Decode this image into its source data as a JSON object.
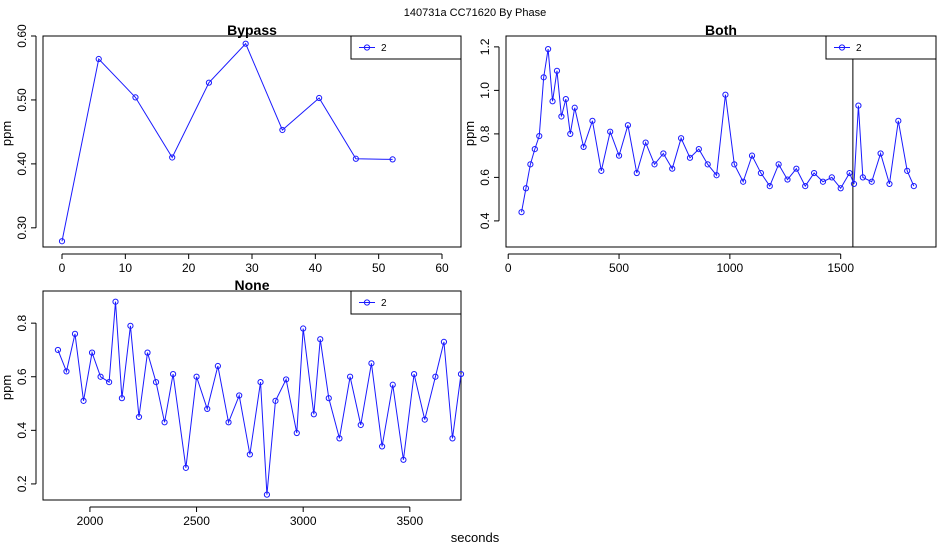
{
  "figure": {
    "supertitle": "140731a    CC71620   By Phase",
    "xlabel": "seconds"
  },
  "colors": {
    "series": "#1a1aff",
    "axis": "#000000",
    "frame": "#000000"
  },
  "chart_data": [
    {
      "type": "line",
      "title": "Bypass",
      "ylabel": "ppm",
      "xlabel": "",
      "xlim": [
        -3,
        63
      ],
      "ylim": [
        0.27,
        0.6
      ],
      "xticks": [
        0,
        10,
        20,
        30,
        40,
        50,
        60
      ],
      "yticks": [
        0.3,
        0.4,
        0.5,
        0.6
      ],
      "ytick_labels": [
        "0.30",
        "0.40",
        "0.50",
        "0.60"
      ],
      "legend": {
        "position": "top-right",
        "entries": [
          "2"
        ]
      },
      "series": [
        {
          "name": "2",
          "x": [
            0,
            5.8,
            11.6,
            17.4,
            23.2,
            29.0,
            34.8,
            40.6,
            46.4,
            52.2
          ],
          "y": [
            0.279,
            0.564,
            0.504,
            0.41,
            0.527,
            0.588,
            0.453,
            0.503,
            0.408,
            0.407
          ]
        }
      ]
    },
    {
      "type": "line",
      "title": "Both",
      "ylabel": "ppm",
      "xlabel": "",
      "xlim": [
        -10,
        1930
      ],
      "ylim": [
        0.28,
        1.25
      ],
      "xticks": [
        0,
        500,
        1000,
        1500
      ],
      "yticks": [
        0.4,
        0.6,
        0.8,
        1.0,
        1.2
      ],
      "ytick_labels": [
        "0.4",
        "0.6",
        "0.8",
        "1.0",
        "1.2"
      ],
      "vline_x": 1555,
      "legend": {
        "position": "top-right",
        "entries": [
          "2"
        ]
      },
      "series": [
        {
          "name": "2",
          "x": [
            60,
            80,
            100,
            120,
            140,
            160,
            180,
            200,
            220,
            240,
            260,
            280,
            300,
            340,
            380,
            420,
            460,
            500,
            540,
            580,
            620,
            660,
            700,
            740,
            780,
            820,
            860,
            900,
            940,
            980,
            1020,
            1060,
            1100,
            1140,
            1180,
            1220,
            1260,
            1300,
            1340,
            1380,
            1420,
            1460,
            1500,
            1540,
            1560,
            1580,
            1600,
            1640,
            1680,
            1720,
            1760,
            1800,
            1830
          ],
          "y": [
            0.44,
            0.55,
            0.66,
            0.73,
            0.79,
            1.06,
            1.19,
            0.95,
            1.09,
            0.88,
            0.96,
            0.8,
            0.92,
            0.74,
            0.86,
            0.63,
            0.81,
            0.7,
            0.84,
            0.62,
            0.76,
            0.66,
            0.71,
            0.64,
            0.78,
            0.69,
            0.73,
            0.66,
            0.61,
            0.98,
            0.66,
            0.58,
            0.7,
            0.62,
            0.56,
            0.66,
            0.59,
            0.64,
            0.56,
            0.62,
            0.58,
            0.6,
            0.55,
            0.62,
            0.57,
            0.93,
            0.6,
            0.58,
            0.71,
            0.57,
            0.86,
            0.63,
            0.56
          ]
        }
      ]
    },
    {
      "type": "line",
      "title": "None",
      "ylabel": "ppm",
      "xlabel": "",
      "xlim": [
        1780,
        3740
      ],
      "ylim": [
        0.14,
        0.92
      ],
      "xticks": [
        2000,
        2500,
        3000,
        3500
      ],
      "yticks": [
        0.2,
        0.4,
        0.6,
        0.8
      ],
      "ytick_labels": [
        "0.2",
        "0.4",
        "0.6",
        "0.8"
      ],
      "legend": {
        "position": "top-right",
        "entries": [
          "2"
        ]
      },
      "series": [
        {
          "name": "2",
          "x": [
            1850,
            1890,
            1930,
            1970,
            2010,
            2050,
            2090,
            2120,
            2150,
            2190,
            2230,
            2270,
            2310,
            2350,
            2390,
            2450,
            2500,
            2550,
            2600,
            2650,
            2700,
            2750,
            2800,
            2830,
            2870,
            2920,
            2970,
            3000,
            3050,
            3080,
            3120,
            3170,
            3220,
            3270,
            3320,
            3370,
            3420,
            3470,
            3520,
            3570,
            3620,
            3660,
            3700,
            3740
          ],
          "y": [
            0.7,
            0.62,
            0.76,
            0.51,
            0.69,
            0.6,
            0.58,
            0.88,
            0.52,
            0.79,
            0.45,
            0.69,
            0.58,
            0.43,
            0.61,
            0.26,
            0.6,
            0.48,
            0.64,
            0.43,
            0.53,
            0.31,
            0.58,
            0.16,
            0.51,
            0.59,
            0.39,
            0.78,
            0.46,
            0.74,
            0.52,
            0.37,
            0.6,
            0.42,
            0.65,
            0.34,
            0.57,
            0.29,
            0.61,
            0.44,
            0.6,
            0.73,
            0.37,
            0.61
          ]
        }
      ]
    }
  ]
}
